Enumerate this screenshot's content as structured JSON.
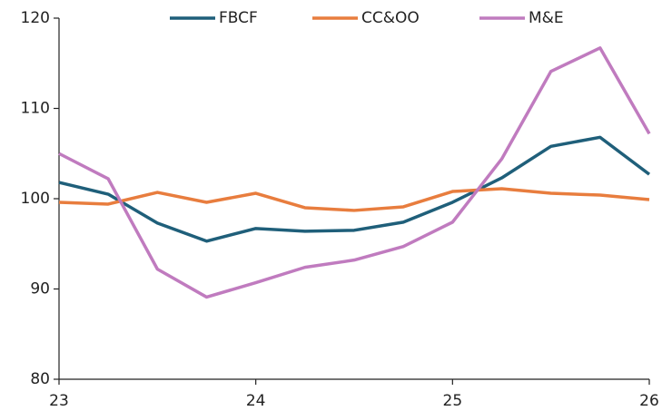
{
  "chart_data": {
    "type": "line",
    "x": [
      23,
      23.25,
      23.5,
      23.75,
      24,
      24.25,
      24.5,
      24.75,
      25,
      25.25,
      25.5,
      25.75,
      26
    ],
    "series": [
      {
        "name": "FBCF",
        "color": "#1f5f7a",
        "values": [
          101.8,
          100.5,
          97.3,
          95.3,
          96.7,
          96.4,
          96.5,
          97.4,
          99.6,
          102.3,
          105.8,
          106.8,
          102.7
        ]
      },
      {
        "name": "CC&OO",
        "color": "#e87d3e",
        "values": [
          99.6,
          99.4,
          100.7,
          99.6,
          100.6,
          99.0,
          98.7,
          99.1,
          100.8,
          101.1,
          100.6,
          100.4,
          99.9
        ]
      },
      {
        "name": "M&E",
        "color": "#c07bbf",
        "values": [
          105.0,
          102.2,
          92.2,
          89.1,
          90.7,
          92.4,
          93.2,
          94.7,
          97.4,
          104.4,
          114.1,
          116.7,
          107.2
        ]
      }
    ],
    "xlim": [
      23,
      26
    ],
    "xticks": [
      23,
      24,
      25,
      26
    ],
    "ylim": [
      80,
      120
    ],
    "yticks": [
      80,
      90,
      100,
      110,
      120
    ],
    "grid": false,
    "legend": "top"
  }
}
